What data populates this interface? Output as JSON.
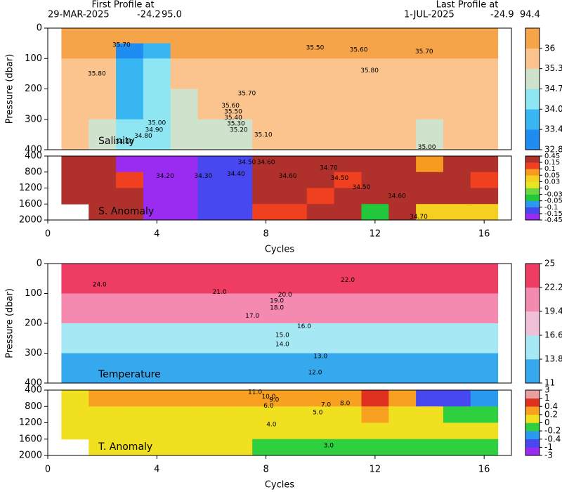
{
  "header": {
    "first_title": "First Profile at",
    "first_date": "29-MAR-2025",
    "first_lat": "-24.2",
    "first_lon": "95.0",
    "last_title": "Last Profile at",
    "last_date": "1-JUL-2025",
    "last_lat": "-24.9",
    "last_lon": "94.4"
  },
  "chart_data": [
    {
      "type": "heatmap",
      "label": "Salinity",
      "ylabel": "Pressure (dbar)",
      "xlim": [
        0,
        17
      ],
      "ylim": [
        0,
        400
      ],
      "yticks": [
        0,
        100,
        200,
        300,
        400
      ],
      "x_edges": [
        0.5,
        1.5,
        2.5,
        3.5,
        4.5,
        5.5,
        6.5,
        7.5,
        8.5,
        9.5,
        10.5,
        11.5,
        12.5,
        13.5,
        14.5,
        15.5,
        16.5
      ],
      "y_edges": [
        0,
        50,
        100,
        200,
        300,
        400
      ],
      "z": [
        [
          36.1,
          36.1,
          35.9,
          35.6,
          35.5
        ],
        [
          36.1,
          36.05,
          35.9,
          35.5,
          35.2
        ],
        [
          36.1,
          33.2,
          33.6,
          34.0,
          34.4
        ],
        [
          36.1,
          34.0,
          34.2,
          34.5,
          34.6
        ],
        [
          36.1,
          36.05,
          35.8,
          35.2,
          34.9
        ],
        [
          36.1,
          36.05,
          35.9,
          35.5,
          35.0
        ],
        [
          36.1,
          36.05,
          35.9,
          35.5,
          35.0
        ],
        [
          36.1,
          36.05,
          35.9,
          35.6,
          35.4
        ],
        [
          36.1,
          36.05,
          35.9,
          35.6,
          35.4
        ],
        [
          36.1,
          36.05,
          35.9,
          35.6,
          35.4
        ],
        [
          36.1,
          36.05,
          35.9,
          35.6,
          35.4
        ],
        [
          36.1,
          36.05,
          35.9,
          35.6,
          35.4
        ],
        [
          36.1,
          36.05,
          35.9,
          35.6,
          35.4
        ],
        [
          36.1,
          36.05,
          35.9,
          35.6,
          34.9
        ],
        [
          36.1,
          36.05,
          35.9,
          35.6,
          35.4
        ],
        [
          36.1,
          36.05,
          35.9,
          35.6,
          35.4
        ]
      ],
      "cbar_ticks": [
        32.8,
        33.44,
        34.08,
        34.72,
        35.36,
        36
      ],
      "cbar_colors": [
        "#1e8cf0",
        "#38b6f2",
        "#8ee6f2",
        "#cfe2cc",
        "#fbc48e",
        "#f6a449"
      ],
      "contour_labels": [
        {
          "x": 2.7,
          "y": 55,
          "label": "35.70"
        },
        {
          "x": 1.8,
          "y": 150,
          "label": "35.80"
        },
        {
          "x": 9.8,
          "y": 65,
          "label": "35.50"
        },
        {
          "x": 11.4,
          "y": 72,
          "label": "35.60"
        },
        {
          "x": 13.8,
          "y": 78,
          "label": "35.70"
        },
        {
          "x": 11.8,
          "y": 140,
          "label": "35.80"
        },
        {
          "x": 7.3,
          "y": 215,
          "label": "35.70"
        },
        {
          "x": 6.7,
          "y": 255,
          "label": "35.60"
        },
        {
          "x": 6.8,
          "y": 275,
          "label": "35.50"
        },
        {
          "x": 6.8,
          "y": 295,
          "label": "35.40"
        },
        {
          "x": 6.9,
          "y": 315,
          "label": "35.30"
        },
        {
          "x": 7.0,
          "y": 335,
          "label": "35.20"
        },
        {
          "x": 7.9,
          "y": 352,
          "label": "35.10"
        },
        {
          "x": 4.0,
          "y": 312,
          "label": "35.00"
        },
        {
          "x": 3.9,
          "y": 335,
          "label": "34.90"
        },
        {
          "x": 3.5,
          "y": 355,
          "label": "34.80"
        },
        {
          "x": 2.8,
          "y": 375,
          "label": "34.40"
        },
        {
          "x": 13.9,
          "y": 392,
          "label": "35.00"
        }
      ]
    },
    {
      "type": "heatmap",
      "label": "S. Anomaly",
      "xlabel": "Cycles",
      "xlim": [
        0,
        17
      ],
      "xticks": [
        0,
        4,
        8,
        12,
        16
      ],
      "ylim": [
        400,
        2000
      ],
      "yticks": [
        400,
        800,
        1200,
        1600,
        2000
      ],
      "x_edges": [
        0.5,
        1.5,
        2.5,
        3.5,
        4.5,
        5.5,
        6.5,
        7.5,
        8.5,
        9.5,
        10.5,
        11.5,
        12.5,
        13.5,
        14.5,
        15.5,
        16.5
      ],
      "y_edges": [
        400,
        800,
        1200,
        1600,
        2000
      ],
      "z": [
        [
          0.2,
          0.2,
          0.2,
          null
        ],
        [
          0.2,
          0.2,
          0.2,
          0.2
        ],
        [
          -0.5,
          0.1,
          0.2,
          0.2
        ],
        [
          -0.5,
          -0.5,
          -0.5,
          -0.5
        ],
        [
          -0.2,
          -0.2,
          -0.2,
          -0.2
        ],
        [
          -0.12,
          -0.12,
          -0.12,
          -0.12
        ],
        [
          -0.12,
          -0.12,
          -0.12,
          -0.12
        ],
        [
          0.2,
          0.2,
          0.2,
          0.12
        ],
        [
          0.2,
          0.2,
          0.2,
          0.12
        ],
        [
          0.2,
          0.2,
          0.12,
          0.2
        ],
        [
          0.2,
          0.12,
          0.2,
          0.2
        ],
        [
          0.2,
          0.2,
          0.2,
          -0.04
        ],
        [
          0.2,
          0.2,
          0.2,
          0.2
        ],
        [
          0.08,
          0.2,
          0.2,
          0.04
        ],
        [
          0.2,
          0.2,
          0.2,
          0.04
        ],
        [
          0.2,
          0.12,
          0.2,
          0.04
        ]
      ],
      "cbar_ticks": [
        -0.45,
        -0.15,
        -0.1,
        -0.05,
        -0.03,
        0,
        0.03,
        0.05,
        0.1,
        0.15,
        0.45
      ],
      "cbar_colors": [
        "#9a2cf2",
        "#4848f0",
        "#2a9af0",
        "#22c83c",
        "#6cd640",
        "#e6e622",
        "#f6d020",
        "#f89a20",
        "#f04020",
        "#b0302c"
      ],
      "contour_labels": [
        {
          "x": 4.3,
          "y": 900,
          "label": "34.20"
        },
        {
          "x": 5.7,
          "y": 900,
          "label": "34.30"
        },
        {
          "x": 6.9,
          "y": 850,
          "label": "34.40"
        },
        {
          "x": 7.3,
          "y": 560,
          "label": "34.50"
        },
        {
          "x": 8.0,
          "y": 560,
          "label": "34.60"
        },
        {
          "x": 8.8,
          "y": 900,
          "label": "34.60"
        },
        {
          "x": 10.3,
          "y": 700,
          "label": "34.70"
        },
        {
          "x": 10.7,
          "y": 950,
          "label": "34.50"
        },
        {
          "x": 11.5,
          "y": 1180,
          "label": "34.50"
        },
        {
          "x": 12.8,
          "y": 1400,
          "label": "34.60"
        },
        {
          "x": 13.6,
          "y": 1920,
          "label": "34.70"
        }
      ]
    },
    {
      "type": "heatmap",
      "label": "Temperature",
      "ylabel": "Pressure (dbar)",
      "xlim": [
        0,
        17
      ],
      "ylim": [
        0,
        400
      ],
      "yticks": [
        0,
        100,
        200,
        300,
        400
      ],
      "x_edges": [
        0.5,
        1.5,
        2.5,
        3.5,
        4.5,
        5.5,
        6.5,
        7.5,
        8.5,
        9.5,
        10.5,
        11.5,
        12.5,
        13.5,
        14.5,
        15.5,
        16.5
      ],
      "y_edges": [
        0,
        50,
        100,
        200,
        300,
        400
      ],
      "z": [
        [
          24.3,
          22.8,
          20.2,
          16.2,
          13.2
        ],
        [
          24.3,
          22.8,
          20.2,
          16.2,
          13.2
        ],
        [
          24.3,
          22.8,
          20.2,
          16.2,
          13.2
        ],
        [
          24.3,
          22.8,
          20.2,
          16.2,
          13.2
        ],
        [
          24.3,
          22.8,
          20.2,
          16.2,
          13.2
        ],
        [
          24.3,
          22.8,
          20.2,
          16.2,
          13.2
        ],
        [
          24.3,
          22.8,
          20.2,
          16.2,
          13.2
        ],
        [
          24.3,
          22.8,
          20.2,
          16.2,
          13.2
        ],
        [
          24.3,
          22.8,
          20.2,
          16.2,
          13.2
        ],
        [
          24.3,
          22.8,
          20.2,
          16.2,
          13.2
        ],
        [
          24.3,
          22.8,
          20.2,
          16.2,
          13.2
        ],
        [
          24.3,
          22.8,
          20.2,
          16.2,
          13.2
        ],
        [
          24.3,
          22.8,
          20.2,
          16.2,
          13.2
        ],
        [
          24.3,
          22.8,
          20.2,
          16.2,
          13.2
        ],
        [
          24.3,
          22.8,
          20.2,
          16.2,
          13.2
        ],
        [
          24.3,
          22.8,
          20.2,
          16.2,
          13.2
        ]
      ],
      "cbar_ticks": [
        11,
        13.8,
        16.6,
        19.4,
        22.2,
        25
      ],
      "cbar_colors": [
        "#36a8ee",
        "#a6e8f4",
        "#f0c0d8",
        "#f58ab0",
        "#ef3c62"
      ],
      "contour_labels": [
        {
          "x": 1.9,
          "y": 70,
          "label": "24.0"
        },
        {
          "x": 11.0,
          "y": 55,
          "label": "22.0"
        },
        {
          "x": 6.3,
          "y": 95,
          "label": "21.0"
        },
        {
          "x": 8.7,
          "y": 105,
          "label": "20.0"
        },
        {
          "x": 8.4,
          "y": 125,
          "label": "19.0"
        },
        {
          "x": 8.4,
          "y": 148,
          "label": "18.0"
        },
        {
          "x": 7.5,
          "y": 175,
          "label": "17.0"
        },
        {
          "x": 9.4,
          "y": 210,
          "label": "16.0"
        },
        {
          "x": 8.6,
          "y": 240,
          "label": "15.0"
        },
        {
          "x": 8.6,
          "y": 270,
          "label": "14.0"
        },
        {
          "x": 10.0,
          "y": 310,
          "label": "13.0"
        },
        {
          "x": 9.8,
          "y": 365,
          "label": "12.0"
        }
      ]
    },
    {
      "type": "heatmap",
      "label": "T. Anomaly",
      "xlabel": "Cycles",
      "xlim": [
        0,
        17
      ],
      "xticks": [
        0,
        4,
        8,
        12,
        16
      ],
      "ylim": [
        400,
        2000
      ],
      "yticks": [
        400,
        800,
        1200,
        1600,
        2000
      ],
      "x_edges": [
        0.5,
        1.5,
        2.5,
        3.5,
        4.5,
        5.5,
        6.5,
        7.5,
        8.5,
        9.5,
        10.5,
        11.5,
        12.5,
        13.5,
        14.5,
        15.5,
        16.5
      ],
      "y_edges": [
        400,
        800,
        1200,
        1600,
        2000
      ],
      "z": [
        [
          0.1,
          0.1,
          0.1,
          null
        ],
        [
          0.3,
          0.1,
          0.1,
          0.1
        ],
        [
          0.3,
          0.1,
          0.1,
          0.1
        ],
        [
          0.3,
          0.1,
          0.1,
          0.1
        ],
        [
          0.3,
          0.1,
          0.1,
          0.1
        ],
        [
          0.3,
          0.1,
          0.1,
          0.1
        ],
        [
          0.3,
          0.1,
          0.1,
          0.1
        ],
        [
          0.3,
          0.1,
          0.1,
          -0.1
        ],
        [
          0.3,
          0.1,
          0.1,
          -0.1
        ],
        [
          0.3,
          0.1,
          0.1,
          -0.1
        ],
        [
          0.3,
          0.1,
          0.1,
          -0.1
        ],
        [
          0.6,
          0.3,
          0.1,
          -0.1
        ],
        [
          0.3,
          0.1,
          0.1,
          -0.1
        ],
        [
          -0.6,
          0.1,
          0.1,
          -0.1
        ],
        [
          -0.6,
          -0.1,
          0.1,
          -0.1
        ],
        [
          -0.3,
          -0.1,
          0.1,
          -0.1
        ]
      ],
      "cbar_ticks": [
        -3,
        -1,
        -0.4,
        -0.2,
        0,
        0.2,
        0.4,
        1,
        3
      ],
      "cbar_colors": [
        "#9a2cf2",
        "#4848f0",
        "#2a9af0",
        "#2ed040",
        "#f0e020",
        "#f8a020",
        "#e03020",
        "#e8a0a0"
      ],
      "contour_labels": [
        {
          "x": 7.6,
          "y": 450,
          "label": "11.0"
        },
        {
          "x": 8.1,
          "y": 560,
          "label": "10.0"
        },
        {
          "x": 8.3,
          "y": 640,
          "label": "9.0"
        },
        {
          "x": 8.1,
          "y": 790,
          "label": "6.0"
        },
        {
          "x": 10.2,
          "y": 760,
          "label": "7.0"
        },
        {
          "x": 10.9,
          "y": 730,
          "label": "8.0"
        },
        {
          "x": 9.9,
          "y": 950,
          "label": "5.0"
        },
        {
          "x": 8.2,
          "y": 1240,
          "label": "4.0"
        },
        {
          "x": 10.3,
          "y": 1760,
          "label": "3.0"
        }
      ]
    }
  ]
}
